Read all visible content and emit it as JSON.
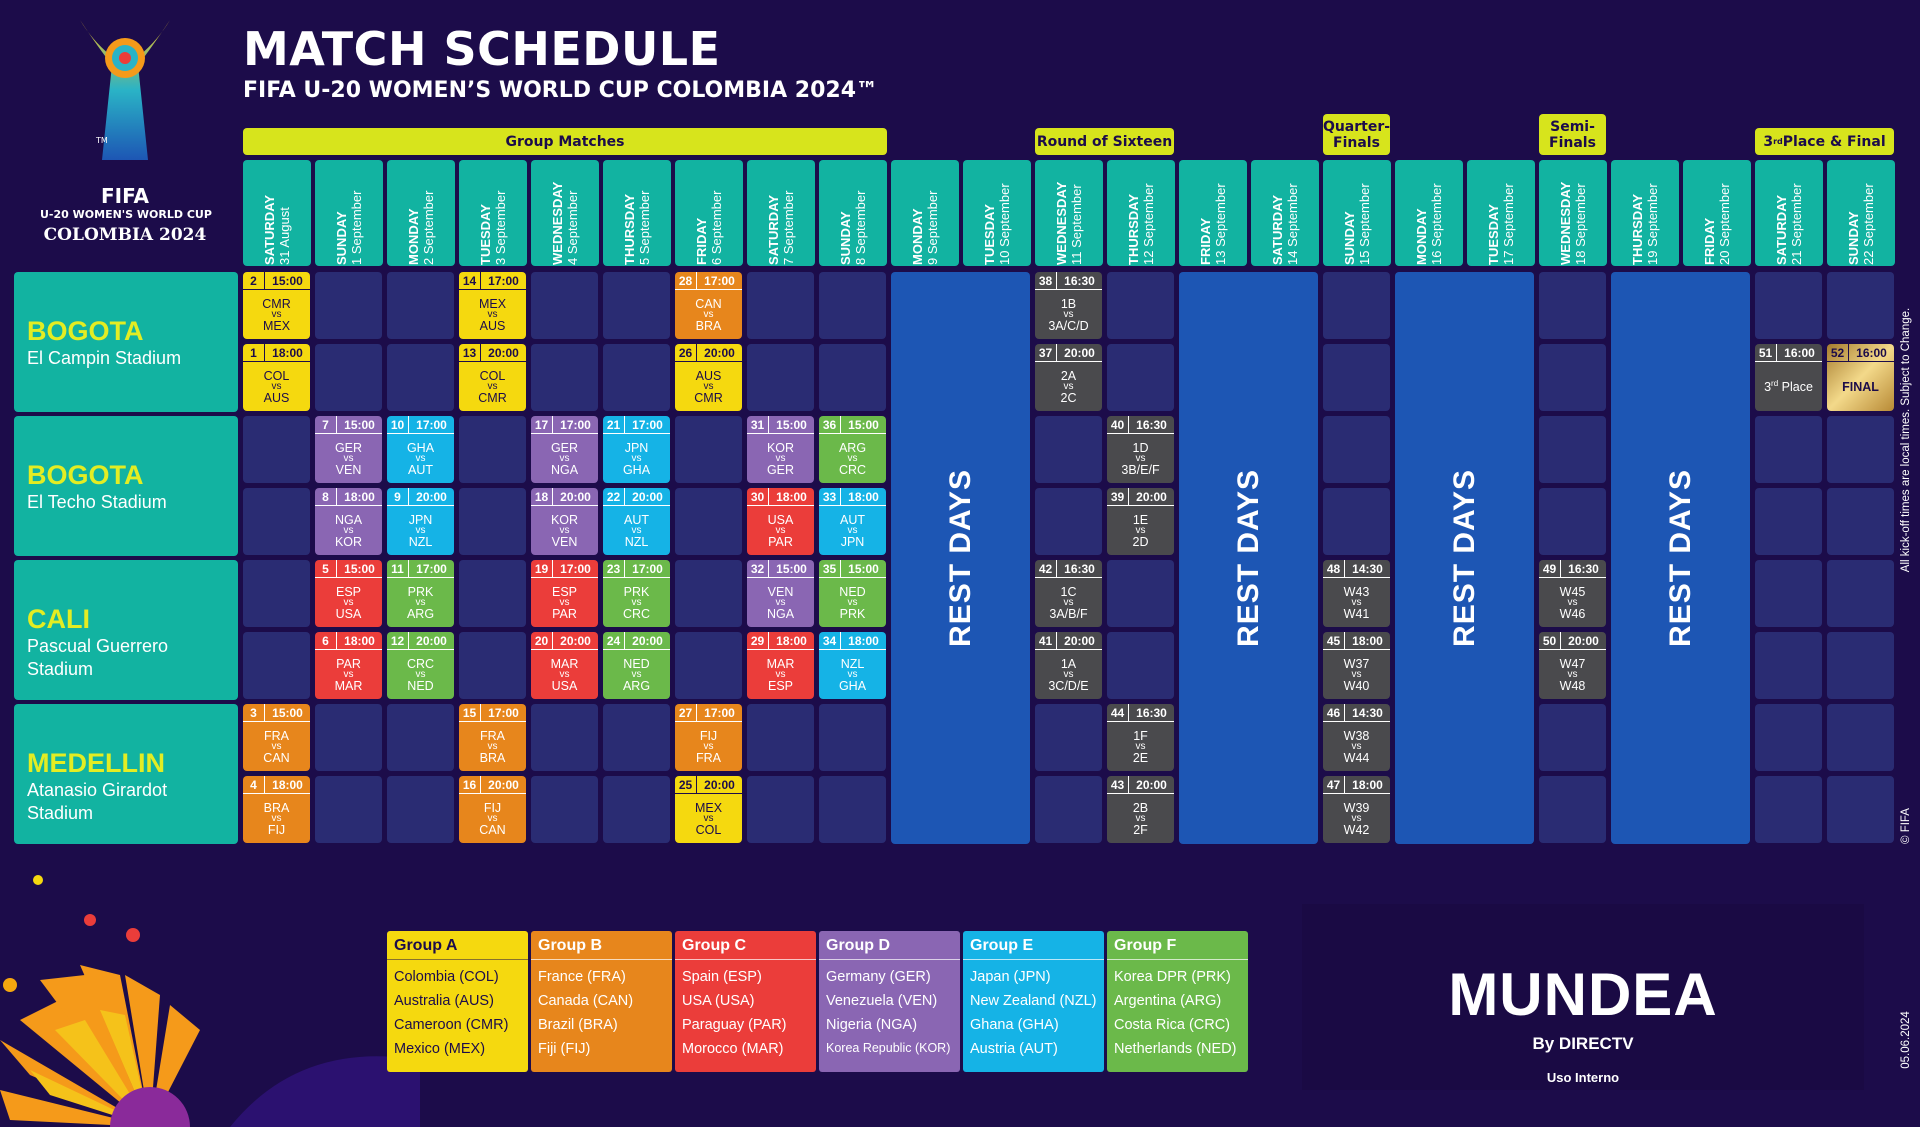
{
  "header": {
    "title": "MATCH SCHEDULE",
    "subtitle": "FIFA U-20 WOMEN’S WORLD CUP COLOMBIA 2024™"
  },
  "logo": {
    "fifa": "FIFA",
    "event": "U-20 WOMEN'S WORLD CUP",
    "country": "COLOMBIA 2024",
    "tm": "TM"
  },
  "phases": [
    {
      "label": "Group Matches"
    },
    {
      "label": "Round of Sixteen"
    },
    {
      "label": "Quarter-Finals"
    },
    {
      "label": "Semi-Finals"
    },
    {
      "label": "3rd Place & Final"
    }
  ],
  "days": [
    {
      "day": "SATURDAY",
      "date": "31 August"
    },
    {
      "day": "SUNDAY",
      "date": "1 September"
    },
    {
      "day": "MONDAY",
      "date": "2 September"
    },
    {
      "day": "TUESDAY",
      "date": "3 September"
    },
    {
      "day": "WEDNESDAY",
      "date": "4 September"
    },
    {
      "day": "THURSDAY",
      "date": "5 September"
    },
    {
      "day": "FRIDAY",
      "date": "6 September"
    },
    {
      "day": "SATURDAY",
      "date": "7 September"
    },
    {
      "day": "SUNDAY",
      "date": "8 September"
    },
    {
      "day": "MONDAY",
      "date": "9 September"
    },
    {
      "day": "TUESDAY",
      "date": "10 September"
    },
    {
      "day": "WEDNESDAY",
      "date": "11 September"
    },
    {
      "day": "THURSDAY",
      "date": "12 September"
    },
    {
      "day": "FRIDAY",
      "date": "13 September"
    },
    {
      "day": "SATURDAY",
      "date": "14 September"
    },
    {
      "day": "SUNDAY",
      "date": "15 September"
    },
    {
      "day": "MONDAY",
      "date": "16 September"
    },
    {
      "day": "TUESDAY",
      "date": "17 September"
    },
    {
      "day": "WEDNESDAY",
      "date": "18 September"
    },
    {
      "day": "THURSDAY",
      "date": "19 September"
    },
    {
      "day": "FRIDAY",
      "date": "20 September"
    },
    {
      "day": "SATURDAY",
      "date": "21 September"
    },
    {
      "day": "SUNDAY",
      "date": "22 September"
    }
  ],
  "venues": [
    {
      "city": "BOGOTA",
      "stadium": "El Campin Stadium"
    },
    {
      "city": "BOGOTA",
      "stadium": "El Techo Stadium"
    },
    {
      "city": "CALI",
      "stadium": "Pascual Guerrero Stadium"
    },
    {
      "city": "MEDELLIN",
      "stadium": "Atanasio Girardot Stadium"
    }
  ],
  "rest_label": "REST DAYS",
  "colors": {
    "background": "#1c0c4a",
    "teal": "#12b3a1",
    "empty_cell": "#2a2c73",
    "rest": "#1d56b4",
    "phase": "#d7e41c",
    "A": "#f5d90f",
    "B": "#e7861c",
    "C": "#eb3d3a",
    "D": "#8a66b3",
    "E": "#15b3e6",
    "F": "#6bb94a",
    "KO": "#4a4a4d",
    "FINAL": "#c9a24a"
  },
  "matches": [
    {
      "day": 0,
      "row": 0,
      "num": "2",
      "time": "15:00",
      "home": "CMR",
      "away": "MEX",
      "group": "A"
    },
    {
      "day": 0,
      "row": 1,
      "num": "1",
      "time": "18:00",
      "home": "COL",
      "away": "AUS",
      "group": "A"
    },
    {
      "day": 3,
      "row": 0,
      "num": "14",
      "time": "17:00",
      "home": "MEX",
      "away": "AUS",
      "group": "A"
    },
    {
      "day": 3,
      "row": 1,
      "num": "13",
      "time": "20:00",
      "home": "COL",
      "away": "CMR",
      "group": "A"
    },
    {
      "day": 6,
      "row": 0,
      "num": "28",
      "time": "17:00",
      "home": "CAN",
      "away": "BRA",
      "group": "B"
    },
    {
      "day": 6,
      "row": 1,
      "num": "26",
      "time": "20:00",
      "home": "AUS",
      "away": "CMR",
      "group": "A"
    },
    {
      "day": 11,
      "row": 0,
      "num": "38",
      "time": "16:30",
      "home": "1B",
      "away": "3A/C/D",
      "group": "KO"
    },
    {
      "day": 11,
      "row": 1,
      "num": "37",
      "time": "20:00",
      "home": "2A",
      "away": "2C",
      "group": "KO"
    },
    {
      "day": 21,
      "row": 1,
      "num": "51",
      "time": "16:00",
      "label": "3rd Place",
      "group": "KO"
    },
    {
      "day": 22,
      "row": 1,
      "num": "52",
      "time": "16:00",
      "label": "FINAL",
      "group": "FINAL"
    },
    {
      "day": 1,
      "row": 2,
      "num": "7",
      "time": "15:00",
      "home": "GER",
      "away": "VEN",
      "group": "D"
    },
    {
      "day": 2,
      "row": 2,
      "num": "10",
      "time": "17:00",
      "home": "GHA",
      "away": "AUT",
      "group": "E"
    },
    {
      "day": 4,
      "row": 2,
      "num": "17",
      "time": "17:00",
      "home": "GER",
      "away": "NGA",
      "group": "D"
    },
    {
      "day": 5,
      "row": 2,
      "num": "21",
      "time": "17:00",
      "home": "JPN",
      "away": "GHA",
      "group": "E"
    },
    {
      "day": 7,
      "row": 2,
      "num": "31",
      "time": "15:00",
      "home": "KOR",
      "away": "GER",
      "group": "D"
    },
    {
      "day": 8,
      "row": 2,
      "num": "36",
      "time": "15:00",
      "home": "ARG",
      "away": "CRC",
      "group": "F"
    },
    {
      "day": 12,
      "row": 2,
      "num": "40",
      "time": "16:30",
      "home": "1D",
      "away": "3B/E/F",
      "group": "KO"
    },
    {
      "day": 1,
      "row": 3,
      "num": "8",
      "time": "18:00",
      "home": "NGA",
      "away": "KOR",
      "group": "D"
    },
    {
      "day": 2,
      "row": 3,
      "num": "9",
      "time": "20:00",
      "home": "JPN",
      "away": "NZL",
      "group": "E"
    },
    {
      "day": 4,
      "row": 3,
      "num": "18",
      "time": "20:00",
      "home": "KOR",
      "away": "VEN",
      "group": "D"
    },
    {
      "day": 5,
      "row": 3,
      "num": "22",
      "time": "20:00",
      "home": "AUT",
      "away": "NZL",
      "group": "E"
    },
    {
      "day": 7,
      "row": 3,
      "num": "30",
      "time": "18:00",
      "home": "USA",
      "away": "PAR",
      "group": "C"
    },
    {
      "day": 8,
      "row": 3,
      "num": "33",
      "time": "18:00",
      "home": "AUT",
      "away": "JPN",
      "group": "E"
    },
    {
      "day": 12,
      "row": 3,
      "num": "39",
      "time": "20:00",
      "home": "1E",
      "away": "2D",
      "group": "KO"
    },
    {
      "day": 1,
      "row": 4,
      "num": "5",
      "time": "15:00",
      "home": "ESP",
      "away": "USA",
      "group": "C"
    },
    {
      "day": 2,
      "row": 4,
      "num": "11",
      "time": "17:00",
      "home": "PRK",
      "away": "ARG",
      "group": "F"
    },
    {
      "day": 4,
      "row": 4,
      "num": "19",
      "time": "17:00",
      "home": "ESP",
      "away": "PAR",
      "group": "C"
    },
    {
      "day": 5,
      "row": 4,
      "num": "23",
      "time": "17:00",
      "home": "PRK",
      "away": "CRC",
      "group": "F"
    },
    {
      "day": 7,
      "row": 4,
      "num": "32",
      "time": "15:00",
      "home": "VEN",
      "away": "NGA",
      "group": "D"
    },
    {
      "day": 8,
      "row": 4,
      "num": "35",
      "time": "15:00",
      "home": "NED",
      "away": "PRK",
      "group": "F"
    },
    {
      "day": 11,
      "row": 4,
      "num": "42",
      "time": "16:30",
      "home": "1C",
      "away": "3A/B/F",
      "group": "KO"
    },
    {
      "day": 15,
      "row": 4,
      "num": "48",
      "time": "14:30",
      "home": "W43",
      "away": "W41",
      "group": "KO"
    },
    {
      "day": 18,
      "row": 4,
      "num": "49",
      "time": "16:30",
      "home": "W45",
      "away": "W46",
      "group": "KO"
    },
    {
      "day": 1,
      "row": 5,
      "num": "6",
      "time": "18:00",
      "home": "PAR",
      "away": "MAR",
      "group": "C"
    },
    {
      "day": 2,
      "row": 5,
      "num": "12",
      "time": "20:00",
      "home": "CRC",
      "away": "NED",
      "group": "F"
    },
    {
      "day": 4,
      "row": 5,
      "num": "20",
      "time": "20:00",
      "home": "MAR",
      "away": "USA",
      "group": "C"
    },
    {
      "day": 5,
      "row": 5,
      "num": "24",
      "time": "20:00",
      "home": "NED",
      "away": "ARG",
      "group": "F"
    },
    {
      "day": 7,
      "row": 5,
      "num": "29",
      "time": "18:00",
      "home": "MAR",
      "away": "ESP",
      "group": "C"
    },
    {
      "day": 8,
      "row": 5,
      "num": "34",
      "time": "18:00",
      "home": "NZL",
      "away": "GHA",
      "group": "E"
    },
    {
      "day": 11,
      "row": 5,
      "num": "41",
      "time": "20:00",
      "home": "1A",
      "away": "3C/D/E",
      "group": "KO"
    },
    {
      "day": 15,
      "row": 5,
      "num": "45",
      "time": "18:00",
      "home": "W37",
      "away": "W40",
      "group": "KO"
    },
    {
      "day": 18,
      "row": 5,
      "num": "50",
      "time": "20:00",
      "home": "W47",
      "away": "W48",
      "group": "KO"
    },
    {
      "day": 0,
      "row": 6,
      "num": "3",
      "time": "15:00",
      "home": "FRA",
      "away": "CAN",
      "group": "B"
    },
    {
      "day": 3,
      "row": 6,
      "num": "15",
      "time": "17:00",
      "home": "FRA",
      "away": "BRA",
      "group": "B"
    },
    {
      "day": 6,
      "row": 6,
      "num": "27",
      "time": "17:00",
      "home": "FIJ",
      "away": "FRA",
      "group": "B"
    },
    {
      "day": 12,
      "row": 6,
      "num": "44",
      "time": "16:30",
      "home": "1F",
      "away": "2E",
      "group": "KO"
    },
    {
      "day": 15,
      "row": 6,
      "num": "46",
      "time": "14:30",
      "home": "W38",
      "away": "W44",
      "group": "KO"
    },
    {
      "day": 0,
      "row": 7,
      "num": "4",
      "time": "18:00",
      "home": "BRA",
      "away": "FIJ",
      "group": "B"
    },
    {
      "day": 3,
      "row": 7,
      "num": "16",
      "time": "20:00",
      "home": "FIJ",
      "away": "CAN",
      "group": "B"
    },
    {
      "day": 6,
      "row": 7,
      "num": "25",
      "time": "20:00",
      "home": "MEX",
      "away": "COL",
      "group": "A"
    },
    {
      "day": 12,
      "row": 7,
      "num": "43",
      "time": "20:00",
      "home": "2B",
      "away": "2F",
      "group": "KO"
    },
    {
      "day": 15,
      "row": 7,
      "num": "47",
      "time": "18:00",
      "home": "W39",
      "away": "W42",
      "group": "KO"
    }
  ],
  "vs_label": "vs",
  "groups": [
    {
      "key": "A",
      "name": "Group A",
      "teams": [
        "Colombia (COL)",
        "Australia (AUS)",
        "Cameroon (CMR)",
        "Mexico (MEX)"
      ]
    },
    {
      "key": "B",
      "name": "Group B",
      "teams": [
        "France (FRA)",
        "Canada (CAN)",
        "Brazil (BRA)",
        "Fiji (FIJ)"
      ]
    },
    {
      "key": "C",
      "name": "Group C",
      "teams": [
        "Spain (ESP)",
        "USA (USA)",
        "Paraguay (PAR)",
        "Morocco (MAR)"
      ]
    },
    {
      "key": "D",
      "name": "Group D",
      "teams": [
        "Germany (GER)",
        "Venezuela (VEN)",
        "Nigeria (NGA)",
        "Korea Republic (KOR)"
      ]
    },
    {
      "key": "E",
      "name": "Group E",
      "teams": [
        "Japan (JPN)",
        "New Zealand (NZL)",
        "Ghana (GHA)",
        "Austria (AUT)"
      ]
    },
    {
      "key": "F",
      "name": "Group F",
      "teams": [
        "Korea DPR (PRK)",
        "Argentina (ARG)",
        "Costa Rica (CRC)",
        "Netherlands (NED)"
      ]
    }
  ],
  "sponsor": {
    "brand": "MUNDEA",
    "by": "By",
    "partner": "DIRECTV",
    "note": "Uso Interno"
  },
  "side_notes": {
    "kickoff": "All kick-off times are local times. Subject to Change.",
    "copyright": "© FIFA",
    "date": "05.06.2024"
  }
}
